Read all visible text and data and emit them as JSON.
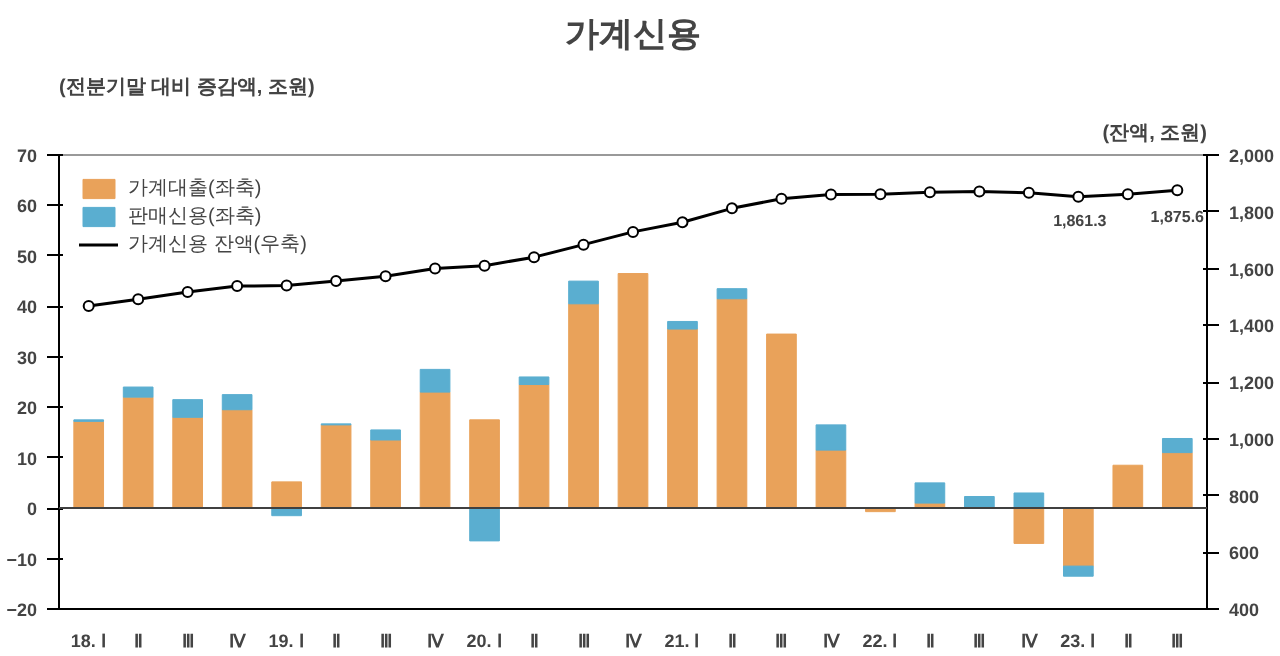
{
  "chart_data": {
    "type": "bar",
    "title": "가계신용",
    "ylabel": "(전분기말 대비 증감액, 조원)",
    "y2label": "(잔액, 조원)",
    "categories": [
      "18. Ⅰ",
      "Ⅱ",
      "Ⅲ",
      "Ⅳ",
      "19. Ⅰ",
      "Ⅱ",
      "Ⅲ",
      "Ⅳ",
      "20. Ⅰ",
      "Ⅱ",
      "Ⅲ",
      "Ⅳ",
      "21. Ⅰ",
      "Ⅱ",
      "Ⅲ",
      "Ⅳ",
      "22. Ⅰ",
      "Ⅱ",
      "Ⅲ",
      "Ⅳ",
      "23. Ⅰ",
      "Ⅱ",
      "Ⅲ"
    ],
    "stacked": true,
    "series": [
      {
        "name": "가계대출(좌축)",
        "color": "#e9a25a",
        "values": [
          17.2,
          22,
          18,
          19.5,
          5.2,
          16.5,
          13.5,
          23,
          17.5,
          24.5,
          40.5,
          46.5,
          35.5,
          41.5,
          34.5,
          11.5,
          -0.7,
          1,
          null,
          -7,
          -11.5,
          8.5,
          11
        ]
      },
      {
        "name": "판매신용(좌축)",
        "color": "#5aaed0",
        "values": [
          0.3,
          2,
          3.5,
          3,
          -1.5,
          0.2,
          2,
          4.5,
          -6.5,
          1.5,
          4.5,
          null,
          1.5,
          2,
          null,
          5,
          null,
          4,
          2.3,
          3,
          -2,
          null,
          2.8
        ]
      },
      {
        "name": "가계신용 잔액(우축)",
        "type": "line",
        "axis": "y2",
        "color": "#000000",
        "marker": "circle",
        "values": [
          1468,
          1492,
          1517,
          1538,
          1540,
          1556,
          1573,
          1600,
          1610,
          1640,
          1684,
          1729,
          1763,
          1812,
          1846,
          1861,
          1862,
          1869,
          1871,
          1867,
          1853,
          1861.3,
          1875.6
        ],
        "value_labels": [
          null,
          null,
          null,
          null,
          null,
          null,
          null,
          null,
          null,
          null,
          null,
          null,
          null,
          null,
          null,
          null,
          null,
          null,
          null,
          null,
          null,
          "1,861.3",
          "1,875.6"
        ]
      }
    ],
    "ylim": [
      -20,
      70
    ],
    "yticks": [
      -20,
      -10,
      0,
      10,
      20,
      30,
      40,
      50,
      60,
      70
    ],
    "y2lim": [
      400,
      2000
    ],
    "y2ticks": [
      {
        "value": 400,
        "label": "400"
      },
      {
        "value": 600,
        "label": "600"
      },
      {
        "value": 800,
        "label": "800"
      },
      {
        "value": 1000,
        "label": "1,000"
      },
      {
        "value": 1200,
        "label": "1,200"
      },
      {
        "value": 1400,
        "label": "1,400"
      },
      {
        "value": 1600,
        "label": "1,600"
      },
      {
        "value": 1800,
        "label": "1,800"
      },
      {
        "value": 2000,
        "label": "2,000"
      }
    ],
    "ref_lines": [
      {
        "axis": "y",
        "value": 0,
        "color": "#404040"
      }
    ],
    "grid": false,
    "legend": "top left"
  }
}
